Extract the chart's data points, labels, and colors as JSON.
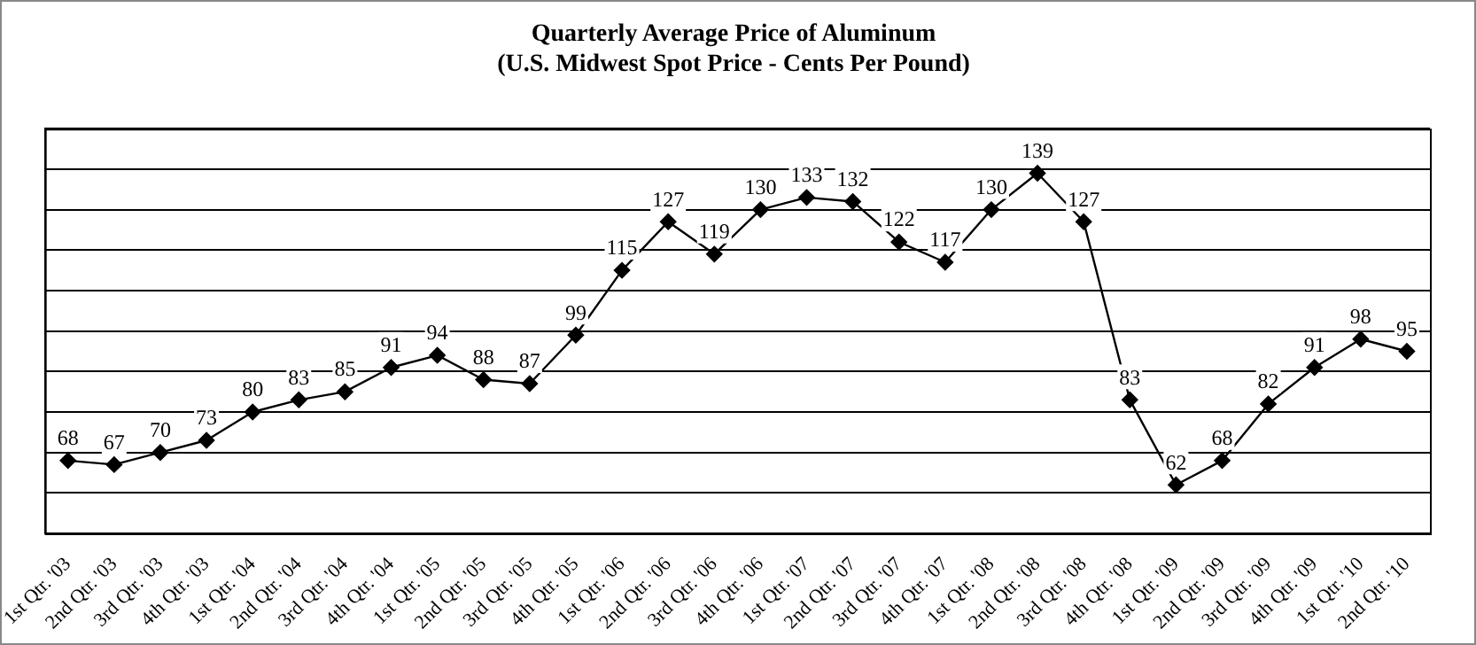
{
  "chart_data": {
    "type": "line",
    "title": "Quarterly Average Price of Aluminum",
    "subtitle": "(U.S. Midwest Spot Price - Cents Per Pound)",
    "categories": [
      "1st Qtr. '03",
      "2nd Qtr. '03",
      "3rd Qtr. '03",
      "4th Qtr. '03",
      "1st Qtr. '04",
      "2nd Qtr. '04",
      "3rd Qtr. '04",
      "4th Qtr. '04",
      "1st Qtr. '05",
      "2nd Qtr. '05",
      "3rd Qtr. '05",
      "4th Qtr. '05",
      "1st Qtr. '06",
      "2nd Qtr. '06",
      "3rd Qtr. '06",
      "4th Qtr. '06",
      "1st Qtr. '07",
      "2nd Qtr. '07",
      "3rd Qtr. '07",
      "4th Qtr. '07",
      "1st Qtr. '08",
      "2nd Qtr. '08",
      "3rd Qtr. '08",
      "4th Qtr. '08",
      "1st Qtr. '09",
      "2nd Qtr. '09",
      "3rd Qtr. '09",
      "4th Qtr. '09",
      "1st Qtr. '10",
      "2nd Qtr. '10"
    ],
    "values": [
      68,
      67,
      70,
      73,
      80,
      83,
      85,
      91,
      94,
      88,
      87,
      99,
      115,
      127,
      119,
      130,
      133,
      132,
      122,
      117,
      130,
      139,
      127,
      83,
      62,
      68,
      82,
      91,
      98,
      95
    ],
    "color": "#000000",
    "ylim": [
      50,
      150
    ],
    "yticks": [
      {
        "value": 50,
        "label": null
      },
      {
        "value": 60,
        "label": null
      },
      {
        "value": 70,
        "label": null
      },
      {
        "value": 80,
        "label": null
      },
      {
        "value": 90,
        "label": null
      },
      {
        "value": 100,
        "label": null
      },
      {
        "value": 110,
        "label": null
      },
      {
        "value": 120,
        "label": null
      },
      {
        "value": 130,
        "label": null
      },
      {
        "value": 140,
        "label": null
      },
      {
        "value": 150,
        "label": null
      }
    ],
    "tick_labels": "x",
    "grid": "y",
    "marker": "diamond",
    "line_style": "solid",
    "data_labels": true,
    "legend": false
  }
}
